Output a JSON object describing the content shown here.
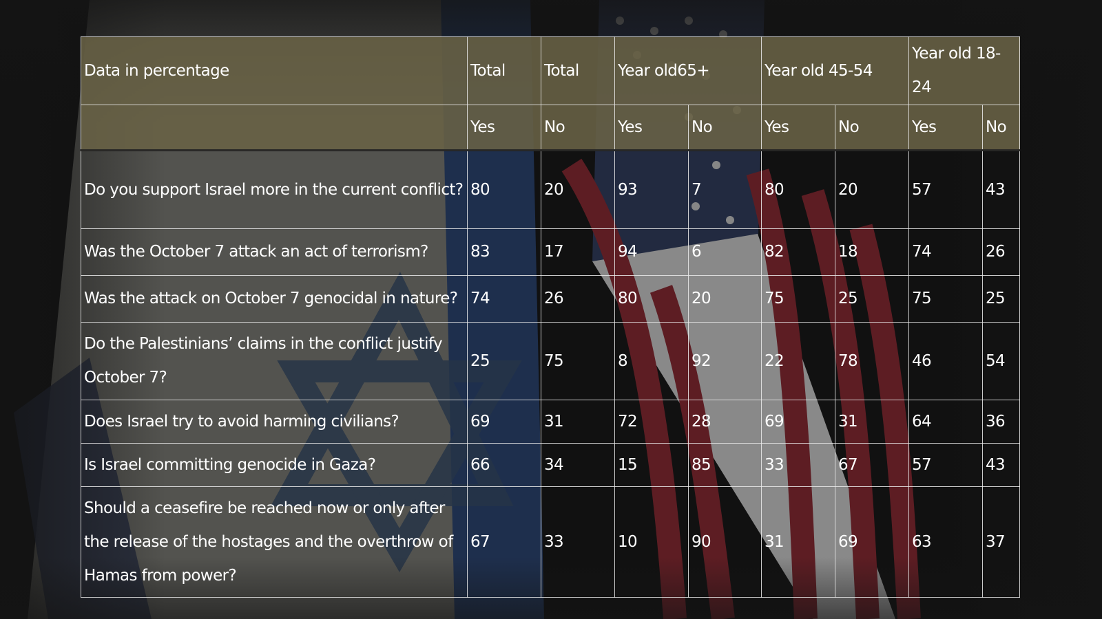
{
  "table": {
    "header_groups": [
      {
        "label": "Data in percentage",
        "span": 1
      },
      {
        "label": "Total",
        "span": 1
      },
      {
        "label": "Total",
        "span": 1
      },
      {
        "label": "Year old65+",
        "span": 2
      },
      {
        "label": "Year old 45-54",
        "span": 2
      },
      {
        "label": "Year old 18-24",
        "span": 2
      }
    ],
    "sub_headers": [
      "",
      "Yes",
      "No",
      "Yes",
      "No",
      "Yes",
      "No",
      "Yes",
      "No"
    ],
    "rows": [
      {
        "question": "Do you support Israel more in the current conflict?",
        "values": [
          "80",
          "20",
          "93",
          "7",
          "80",
          "20",
          "57",
          "43"
        ]
      },
      {
        "question": "Was the October 7 attack an act of terrorism?",
        "values": [
          "83",
          "17",
          "94",
          "6",
          "82",
          "18",
          "74",
          "26"
        ]
      },
      {
        "question": "Was the attack on October 7 genocidal in nature?",
        "values": [
          "74",
          "26",
          "80",
          "20",
          "75",
          "25",
          "75",
          "25"
        ]
      },
      {
        "question": "Do the Palestinians’ claims in the conflict justify October 7?",
        "values": [
          "25",
          "75",
          "8",
          "92",
          "22",
          "78",
          "46",
          "54"
        ]
      },
      {
        "question": "Does Israel try to avoid harming civilians?",
        "values": [
          "69",
          "31",
          "72",
          "28",
          "69",
          "31",
          "64",
          "36"
        ]
      },
      {
        "question": "Is Israel committing genocide in Gaza?",
        "values": [
          "66",
          "34",
          "15",
          "85",
          "33",
          "67",
          "57",
          "43"
        ]
      },
      {
        "question": "Should a ceasefire be reached now or only after the release of the hostages and the overthrow of Hamas from power?",
        "values": [
          "67",
          "33",
          "10",
          "90",
          "31",
          "69",
          "63",
          "37"
        ]
      }
    ]
  },
  "chart_data": {
    "type": "table",
    "title": "",
    "columns": [
      "Data in percentage",
      "Total Yes",
      "Total No",
      "Year old65+ Yes",
      "Year old65+ No",
      "Year old 45-54 Yes",
      "Year old 45-54 No",
      "Year old 18-24 Yes",
      "Year old 18-24 No"
    ],
    "rows": [
      [
        "Do you support Israel more in the current conflict?",
        80,
        20,
        93,
        7,
        80,
        20,
        57,
        43
      ],
      [
        "Was the October 7 attack an act of terrorism?",
        83,
        17,
        94,
        6,
        82,
        18,
        74,
        26
      ],
      [
        "Was the attack on October 7 genocidal in nature?",
        74,
        26,
        80,
        20,
        75,
        25,
        75,
        25
      ],
      [
        "Do the Palestinians’ claims in the conflict justify October 7?",
        25,
        75,
        8,
        92,
        22,
        78,
        46,
        54
      ],
      [
        "Does Israel try to avoid harming civilians?",
        69,
        31,
        72,
        28,
        69,
        31,
        64,
        36
      ],
      [
        "Is Israel committing genocide in Gaza?",
        66,
        34,
        15,
        85,
        33,
        67,
        57,
        43
      ],
      [
        "Should a ceasefire be reached now or only after the release of the hostages and the overthrow of Hamas from power?",
        67,
        33,
        10,
        90,
        31,
        69,
        63,
        37
      ]
    ]
  },
  "background": {
    "icons": [
      "israel-flag",
      "us-flag"
    ]
  }
}
